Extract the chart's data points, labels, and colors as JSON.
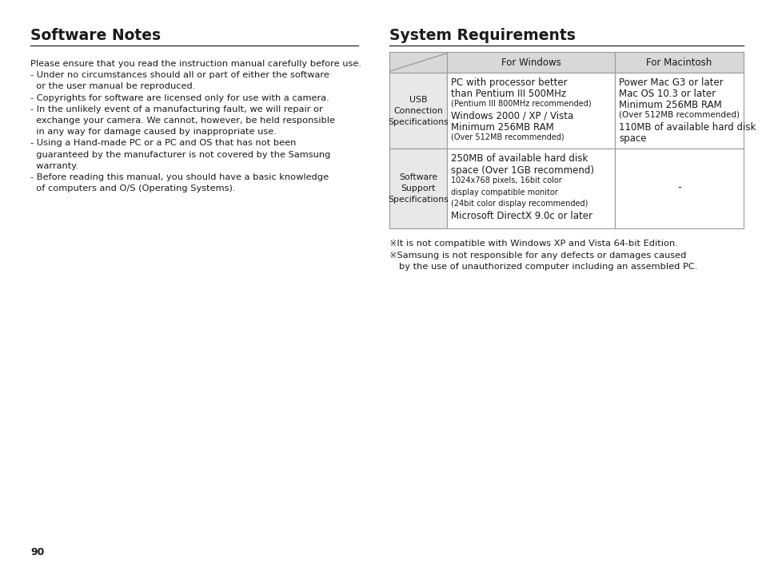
{
  "bg_color": "#ffffff",
  "left_title": "Software Notes",
  "right_title": "System Requirements",
  "left_text": [
    "Please ensure that you read the instruction manual carefully before use.",
    "- Under no circumstances should all or part of either the software",
    "  or the user manual be reproduced.",
    "- Copyrights for software are licensed only for use with a camera.",
    "- In the unlikely event of a manufacturing fault, we will repair or",
    "  exchange your camera. We cannot, however, be held responsible",
    "  in any way for damage caused by inappropriate use.",
    "- Using a Hand-made PC or a PC and OS that has not been",
    "  guaranteed by the manufacturer is not covered by the Samsung",
    "  warranty.",
    "- Before reading this manual, you should have a basic knowledge",
    "  of computers and O/S (Operating Systems)."
  ],
  "table_header_col2": "For Windows",
  "table_header_col3": "For Macintosh",
  "row1_col1": "USB\nConnection\nSpecifications",
  "row1_col2_lines": [
    [
      "PC with processor better",
      false
    ],
    [
      "than Pentium III 500MHz",
      false
    ],
    [
      "(Pentium III 800MHz recommended)",
      true
    ],
    [
      "Windows 2000 / XP / Vista",
      false
    ],
    [
      "Minimum 256MB RAM",
      false
    ],
    [
      "(Over 512MB recommended)",
      true
    ]
  ],
  "row1_col3_lines": [
    "Power Mac G3 or later",
    "Mac OS 10.3 or later",
    "Minimum 256MB RAM",
    "(Over 512MB recommended)",
    "110MB of available hard disk",
    "space"
  ],
  "row2_col1": "Software\nSupport\nSpecifications",
  "row2_col2_lines": [
    [
      "250MB of available hard disk",
      false
    ],
    [
      "space (Over 1GB recommend)",
      false
    ],
    [
      "1024x768 pixels, 16bit color",
      true
    ],
    [
      "display compatible monitor",
      true
    ],
    [
      "(24bit color display recommended)",
      true
    ],
    [
      "Microsoft DirectX 9.0c or later",
      false
    ]
  ],
  "row2_col3": "-",
  "footnote1": "※It is not compatible with Windows XP and Vista 64-bit Edition.",
  "footnote2": "※Samsung is not responsible for any defects or damages caused",
  "footnote3": "  by the use of unauthorized computer including an assembled PC.",
  "page_number": "90",
  "text_color": "#1a1a1a",
  "border_color": "#999999",
  "header_bg": "#d8d8d8",
  "col1_bg": "#e8e8e8"
}
